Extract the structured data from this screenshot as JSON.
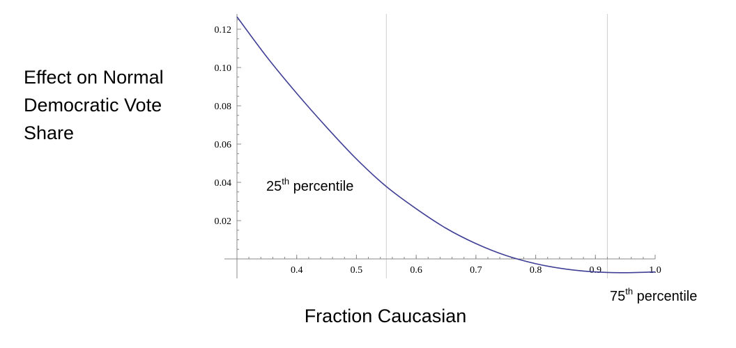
{
  "chart_data": {
    "type": "line",
    "ylabel_lines": [
      "Effect on Normal",
      "Democratic Vote",
      "Share"
    ],
    "xlabel": "Fraction Caucasian",
    "xlim": [
      0.3,
      1.0
    ],
    "ylim": [
      -0.01,
      0.128
    ],
    "x_ticks": [
      {
        "value": 0.4,
        "label": "0.4"
      },
      {
        "value": 0.5,
        "label": "0.5"
      },
      {
        "value": 0.6,
        "label": "0.6"
      },
      {
        "value": 0.7,
        "label": "0.7"
      },
      {
        "value": 0.8,
        "label": "0.8"
      },
      {
        "value": 0.9,
        "label": "0.9"
      },
      {
        "value": 1.0,
        "label": "1.0"
      }
    ],
    "y_ticks": [
      {
        "value": 0.02,
        "label": "0.02"
      },
      {
        "value": 0.04,
        "label": "0.04"
      },
      {
        "value": 0.06,
        "label": "0.06"
      },
      {
        "value": 0.08,
        "label": "0.08"
      },
      {
        "value": 0.1,
        "label": "0.10"
      },
      {
        "value": 0.12,
        "label": "0.12"
      }
    ],
    "series": [
      {
        "color": "#3f3f95",
        "x": [
          0.3,
          0.35,
          0.4,
          0.45,
          0.5,
          0.55,
          0.6,
          0.65,
          0.7,
          0.75,
          0.8,
          0.85,
          0.9,
          0.95,
          1.0
        ],
        "y": [
          0.1265,
          0.1055,
          0.0865,
          0.0688,
          0.0522,
          0.0378,
          0.0262,
          0.016,
          0.008,
          0.0018,
          -0.0025,
          -0.0053,
          -0.0068,
          -0.0072,
          -0.0068
        ]
      }
    ],
    "reference_lines": [
      {
        "x": 0.55,
        "label_main": "25",
        "label_sup": "th",
        "label_rest": " percentile"
      },
      {
        "x": 0.92,
        "label_main": "75",
        "label_sup": "th",
        "label_rest": " percentile"
      }
    ],
    "colors": {
      "line": "#3f3f95",
      "axis": "#888888",
      "reference": "#cfcfcf"
    }
  }
}
